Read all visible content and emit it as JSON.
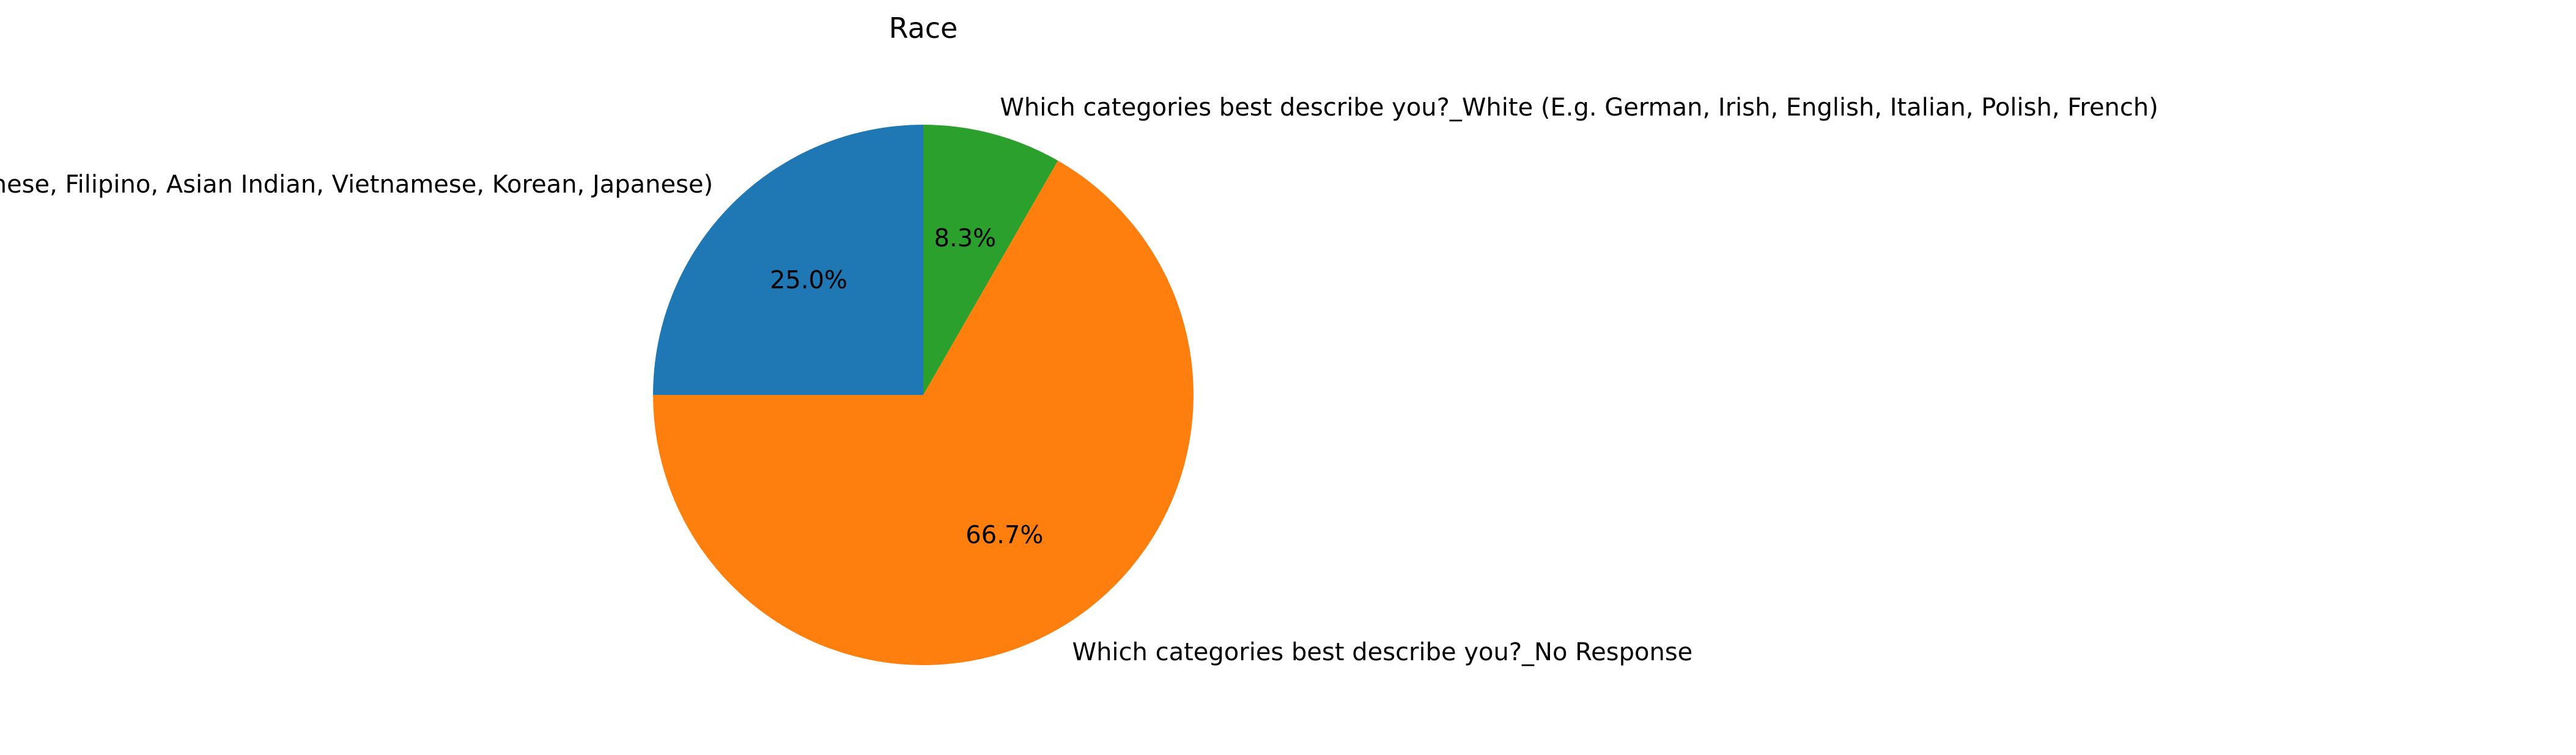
{
  "chart_data": {
    "type": "pie",
    "title": "Race",
    "start_angle_deg": 90,
    "direction": "counterclockwise",
    "slices": [
      {
        "label": "Which categories best describe you?_Asian  (E.g. Chinese, Filipino, Asian Indian, Vietnamese, Korean, Japanese)",
        "value": 25.0,
        "pct_label": "25.0%",
        "color": "#1f77b4"
      },
      {
        "label": "Which categories best describe you?_No Response",
        "value": 66.7,
        "pct_label": "66.7%",
        "color": "#ff7f0e"
      },
      {
        "label": "Which categories best describe you?_White (E.g. German, Irish, English, Italian, Polish, French)",
        "value": 8.3,
        "pct_label": "8.3%",
        "color": "#2ca02c"
      }
    ]
  }
}
